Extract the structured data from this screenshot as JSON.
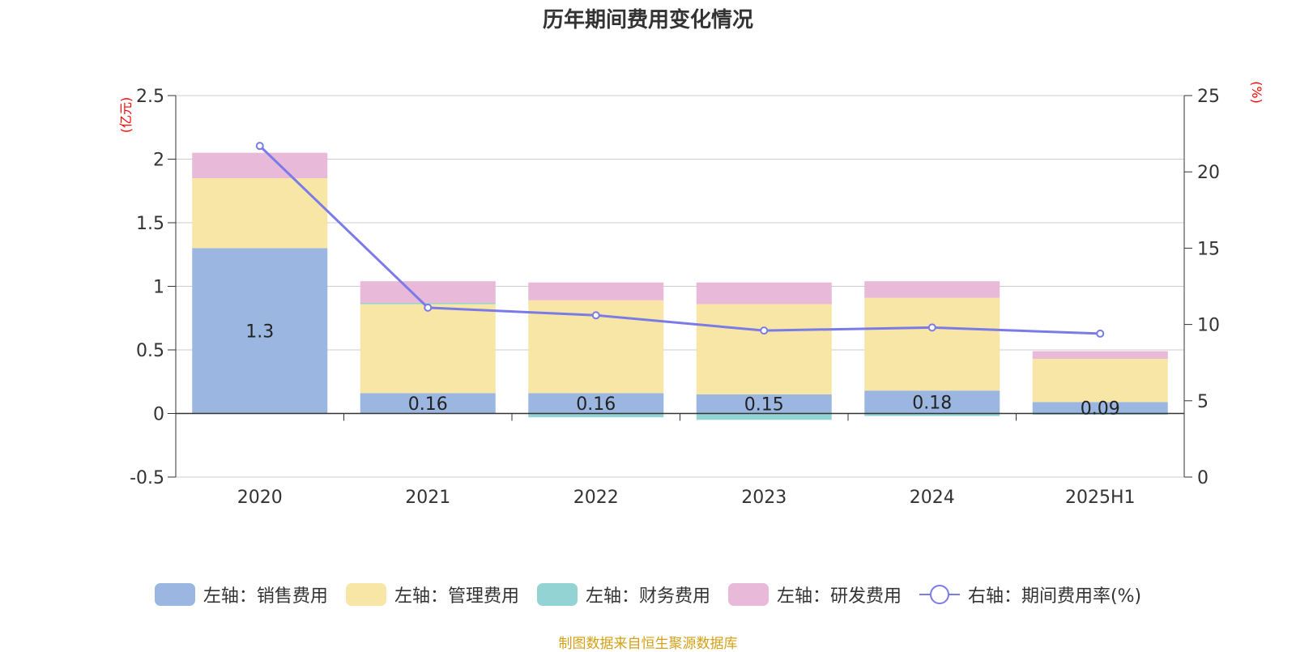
{
  "chart_data": {
    "type": "bar",
    "title": "历年期间费用变化情况",
    "categories": [
      "2020",
      "2021",
      "2022",
      "2023",
      "2024",
      "2025H1"
    ],
    "y_left": {
      "unit": "(亿元)",
      "lim": [
        -0.5,
        2.5
      ],
      "ticks": [
        "-0.5",
        "0",
        "0.5",
        "1",
        "1.5",
        "2",
        "2.5"
      ]
    },
    "y_right": {
      "unit": "(%)",
      "lim": [
        0,
        25
      ],
      "ticks": [
        "0",
        "5",
        "10",
        "15",
        "20",
        "25"
      ]
    },
    "series": [
      {
        "name": "左轴：销售费用",
        "kind": "bar",
        "axis": "left",
        "color": "#9bb6e0",
        "values": [
          1.3,
          0.16,
          0.16,
          0.15,
          0.18,
          0.09
        ],
        "labels": [
          "1.3",
          "0.16",
          "0.16",
          "0.15",
          "0.18",
          "0.09"
        ]
      },
      {
        "name": "左轴：管理费用",
        "kind": "bar",
        "axis": "left",
        "color": "#f7e6a6",
        "values": [
          0.55,
          0.7,
          0.73,
          0.71,
          0.73,
          0.34
        ]
      },
      {
        "name": "左轴：财务费用",
        "kind": "bar",
        "axis": "left",
        "color": "#94d3d3",
        "values": [
          0.0,
          0.01,
          -0.03,
          -0.05,
          -0.02,
          -0.01
        ]
      },
      {
        "name": "左轴：研发费用",
        "kind": "bar",
        "axis": "left",
        "color": "#e8b9d8",
        "values": [
          0.2,
          0.17,
          0.14,
          0.17,
          0.13,
          0.06
        ]
      },
      {
        "name": "右轴：期间费用率(%)",
        "kind": "line",
        "axis": "right",
        "color": "#7b7be8",
        "values": [
          21.7,
          11.1,
          10.6,
          9.6,
          9.8,
          9.4
        ]
      }
    ],
    "grid": true,
    "legend_position": "bottom"
  },
  "legend": [
    {
      "label": "左轴：销售费用",
      "color": "#9bb6e0",
      "shape": "rect"
    },
    {
      "label": "左轴：管理费用",
      "color": "#f7e6a6",
      "shape": "rect"
    },
    {
      "label": "左轴：财务费用",
      "color": "#94d3d3",
      "shape": "rect"
    },
    {
      "label": "左轴：研发费用",
      "color": "#e8b9d8",
      "shape": "rect"
    },
    {
      "label": "右轴：期间费用率(%)",
      "color": "#7b7be8",
      "shape": "line-circle"
    }
  ],
  "source": "制图数据来自恒生聚源数据库",
  "colors": {
    "axis_unit": "#ff0000",
    "grid": "#cccccc",
    "text": "#333333"
  }
}
